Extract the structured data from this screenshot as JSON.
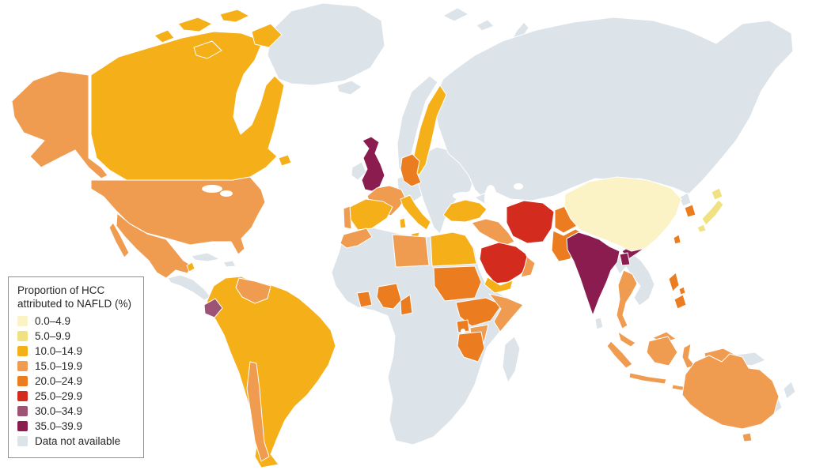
{
  "figure": {
    "type": "choropleth_world_map",
    "metric": "Proportion of HCC attributed to NAFLD (%)"
  },
  "legend": {
    "title_line1": "Proportion of HCC",
    "title_line2": "attributed to NAFLD (%)",
    "items": [
      {
        "label": "0.0–4.9",
        "color": "#FBF3C6"
      },
      {
        "label": "5.0–9.9",
        "color": "#F0E283"
      },
      {
        "label": "10.0–14.9",
        "color": "#F5AF19"
      },
      {
        "label": "15.0–19.9",
        "color": "#EF9C51"
      },
      {
        "label": "20.0–24.9",
        "color": "#EB7D20"
      },
      {
        "label": "25.0–29.9",
        "color": "#D32C1F"
      },
      {
        "label": "30.0–34.9",
        "color": "#9D5375"
      },
      {
        "label": "35.0–39.9",
        "color": "#8A1C50"
      },
      {
        "label": "Data not available",
        "color": "#DCE3E9"
      }
    ]
  },
  "map": {
    "ocean_color": "#FFFFFF",
    "border_color": "#FFFFFF",
    "regions": [
      {
        "id": "china",
        "name": "China",
        "category": 0
      },
      {
        "id": "japan",
        "name": "Japan",
        "category": 1
      },
      {
        "id": "canada",
        "name": "Canada",
        "category": 2
      },
      {
        "id": "sweden",
        "name": "Sweden",
        "category": 2
      },
      {
        "id": "denmark",
        "name": "Denmark",
        "category": 2
      },
      {
        "id": "spain",
        "name": "Spain",
        "category": 2
      },
      {
        "id": "italy",
        "name": "Italy",
        "category": 2
      },
      {
        "id": "turkey",
        "name": "Turkey",
        "category": 2
      },
      {
        "id": "egypt",
        "name": "Egypt",
        "category": 2
      },
      {
        "id": "yemen",
        "name": "Yemen",
        "category": 2
      },
      {
        "id": "belize",
        "name": "Belize",
        "category": 2
      },
      {
        "id": "south-america-main",
        "name": "Colombia, Peru, Brazil, Paraguay, Argentina",
        "category": 2
      },
      {
        "id": "alaska",
        "name": "Alaska (USA)",
        "category": 3
      },
      {
        "id": "usa",
        "name": "United States",
        "category": 3
      },
      {
        "id": "mexico",
        "name": "Mexico",
        "category": 3
      },
      {
        "id": "venezuela",
        "name": "Venezuela",
        "category": 3
      },
      {
        "id": "chile",
        "name": "Chile",
        "category": 3
      },
      {
        "id": "france",
        "name": "France",
        "category": 3
      },
      {
        "id": "portugal",
        "name": "Portugal",
        "category": 3
      },
      {
        "id": "morocco",
        "name": "Morocco",
        "category": 3
      },
      {
        "id": "libya",
        "name": "Libya",
        "category": 3
      },
      {
        "id": "somalia",
        "name": "Somalia",
        "category": 3
      },
      {
        "id": "kenya",
        "name": "Kenya",
        "category": 3
      },
      {
        "id": "syria-iraq",
        "name": "Syria and Iraq",
        "category": 3
      },
      {
        "id": "oman",
        "name": "Oman",
        "category": 3
      },
      {
        "id": "thailand",
        "name": "Thailand",
        "category": 3
      },
      {
        "id": "malaysia",
        "name": "Malaysia",
        "category": 3
      },
      {
        "id": "indonesia",
        "name": "Indonesia",
        "category": 3
      },
      {
        "id": "australia",
        "name": "Australia",
        "category": 3
      },
      {
        "id": "germany",
        "name": "Germany",
        "category": 4
      },
      {
        "id": "south-korea",
        "name": "South Korea",
        "category": 4
      },
      {
        "id": "taiwan",
        "name": "Taiwan",
        "category": 4
      },
      {
        "id": "philippines",
        "name": "Philippines",
        "category": 4
      },
      {
        "id": "afghanistan",
        "name": "Afghanistan",
        "category": 4
      },
      {
        "id": "pakistan",
        "name": "Pakistan",
        "category": 4
      },
      {
        "id": "sudan",
        "name": "Sudan",
        "category": 4
      },
      {
        "id": "ethiopia",
        "name": "Ethiopia",
        "category": 4
      },
      {
        "id": "uganda",
        "name": "Uganda",
        "category": 4
      },
      {
        "id": "tanzania",
        "name": "Tanzania",
        "category": 4
      },
      {
        "id": "nigeria",
        "name": "Nigeria",
        "category": 4
      },
      {
        "id": "cote-divoire",
        "name": "Côte d'Ivoire",
        "category": 4
      },
      {
        "id": "cameroon",
        "name": "Cameroon",
        "category": 4
      },
      {
        "id": "iran",
        "name": "Iran",
        "category": 5
      },
      {
        "id": "saudi-arabia",
        "name": "Saudi Arabia",
        "category": 5
      },
      {
        "id": "ecuador",
        "name": "Ecuador",
        "category": 6
      },
      {
        "id": "united-kingdom",
        "name": "United Kingdom",
        "category": 7
      },
      {
        "id": "india",
        "name": "India",
        "category": 7
      },
      {
        "id": "bangladesh",
        "name": "Bangladesh",
        "category": 7
      },
      {
        "id": "greenland",
        "name": "Greenland",
        "category": 8
      },
      {
        "id": "iceland",
        "name": "Iceland",
        "category": 8
      },
      {
        "id": "ireland",
        "name": "Ireland",
        "category": 8
      },
      {
        "id": "norway",
        "name": "Norway",
        "category": 8
      },
      {
        "id": "finland",
        "name": "Finland",
        "category": 8
      },
      {
        "id": "eastern-europe",
        "name": "Eastern Europe and Balkans",
        "category": 8
      },
      {
        "id": "central-europe",
        "name": "Central Europe",
        "category": 8
      },
      {
        "id": "russia-central-asia",
        "name": "Russia and Central Asia",
        "category": 8
      },
      {
        "id": "caucasus",
        "name": "Caucasus",
        "category": 8
      },
      {
        "id": "arctic-islands",
        "name": "Arctic islands",
        "category": 8
      },
      {
        "id": "guyanas",
        "name": "Guyana, Suriname, French Guiana",
        "category": 8
      },
      {
        "id": "bolivia",
        "name": "Bolivia",
        "category": 8
      },
      {
        "id": "central-america",
        "name": "Central America",
        "category": 8
      },
      {
        "id": "caribbean",
        "name": "Caribbean",
        "category": 8
      },
      {
        "id": "madagascar",
        "name": "Madagascar",
        "category": 8
      },
      {
        "id": "africa-other",
        "name": "Other African countries",
        "category": 8
      },
      {
        "id": "indochina",
        "name": "Myanmar, Laos, Vietnam, Cambodia",
        "category": 8
      },
      {
        "id": "north-korea",
        "name": "North Korea",
        "category": 8
      },
      {
        "id": "sri-lanka",
        "name": "Sri Lanka",
        "category": 8
      },
      {
        "id": "papua-new-guinea",
        "name": "Papua New Guinea",
        "category": 8
      },
      {
        "id": "new-zealand",
        "name": "New Zealand",
        "category": 8
      }
    ]
  }
}
